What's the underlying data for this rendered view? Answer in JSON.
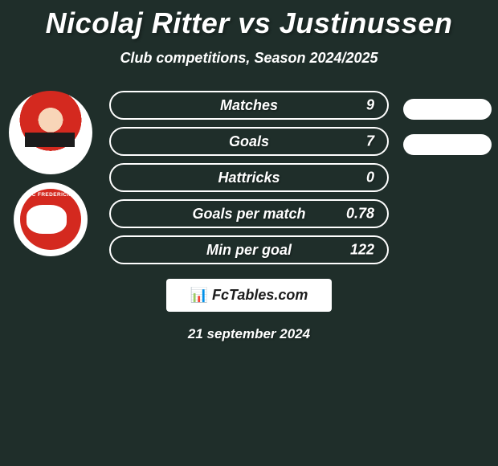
{
  "title": "Nicolaj Ritter vs Justinussen",
  "subtitle": "Club competitions, Season 2024/2025",
  "player_photo": {
    "semantic": "player-headshot",
    "jersey_color": "#d4291f"
  },
  "club_badge": {
    "name": "FC FREDERICIA",
    "bg_color": "#ffffff",
    "inner_color": "#d4291f"
  },
  "stats": [
    {
      "label": "Matches",
      "value": "9"
    },
    {
      "label": "Goals",
      "value": "7"
    },
    {
      "label": "Hattricks",
      "value": "0"
    },
    {
      "label": "Goals per match",
      "value": "0.78"
    },
    {
      "label": "Min per goal",
      "value": "122"
    }
  ],
  "right_pills": {
    "count": 2,
    "color": "#ffffff"
  },
  "brand": "FcTables.com",
  "date": "21 september 2024",
  "styling": {
    "page_bg": "#1f2e2a",
    "text_color": "#ffffff",
    "title_fontsize": 36,
    "subtitle_fontsize": 18,
    "stat_fontsize": 18,
    "stat_border_color": "#ffffff",
    "stat_row_height": 36,
    "stat_border_radius": 22,
    "pill_height": 26,
    "brand_bg": "#ffffff",
    "brand_text_color": "#1c1c1c"
  }
}
